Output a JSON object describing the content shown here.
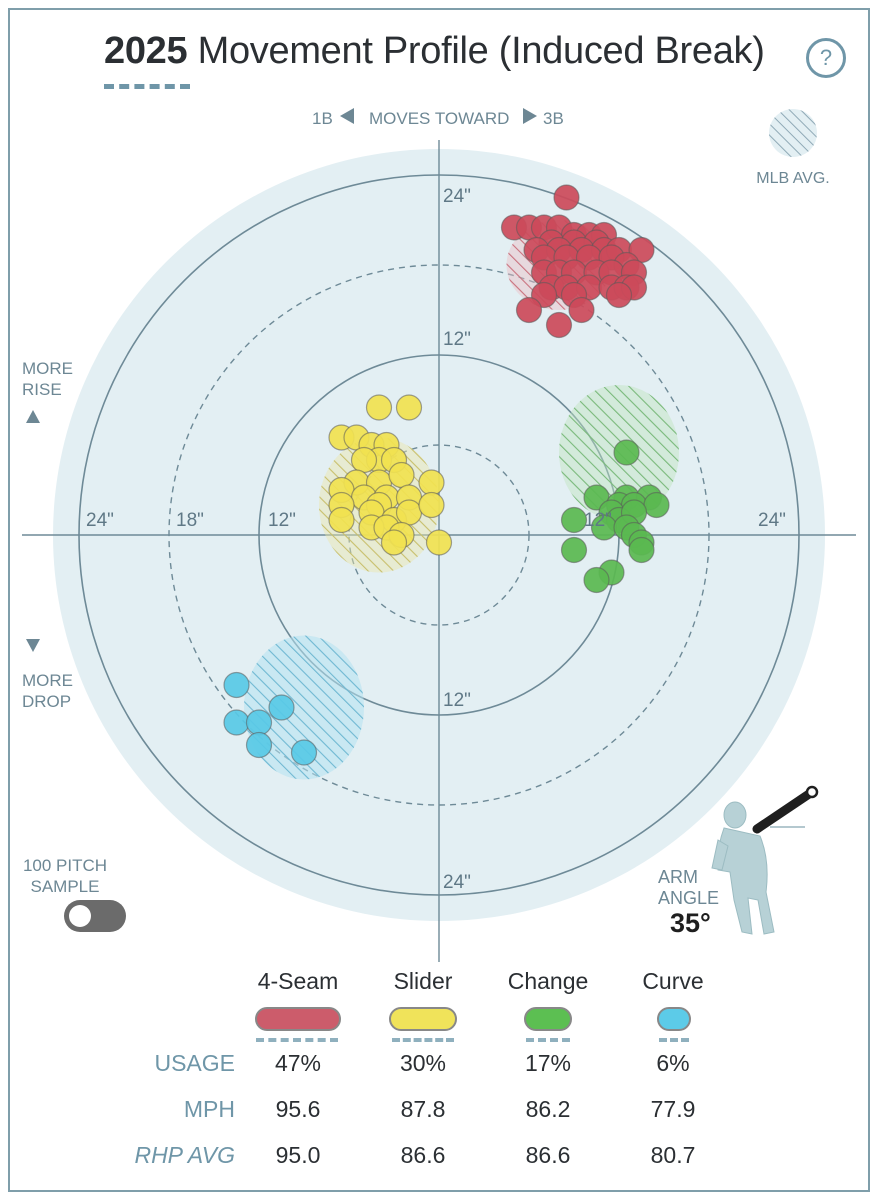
{
  "header": {
    "title_year": "2025",
    "title_rest": " Movement Profile (Induced Break)",
    "help_label": "?"
  },
  "axis_labels": {
    "top_left": "1B",
    "top_middle": "MOVES TOWARD",
    "top_right": "3B",
    "rise_line1": "MORE",
    "rise_line2": "RISE",
    "drop_line1": "MORE",
    "drop_line2": "DROP",
    "mlb_avg": "MLB AVG.",
    "sample_line1": "100 PITCH",
    "sample_line2": "SAMPLE",
    "arm_angle_line1": "ARM",
    "arm_angle_line2": "ANGLE",
    "arm_angle_value": "35°"
  },
  "chart_data": {
    "type": "scatter",
    "title": "2025 Movement Profile (Induced Break)",
    "xlabel": "MOVES TOWARD",
    "x_range": [
      -24,
      24
    ],
    "y_range": [
      -24,
      24
    ],
    "tick_labels": {
      "ring_12": "12\"",
      "ring_18": "18\"",
      "ring_24": "24\""
    },
    "mlb_avg_ellipses": [
      {
        "pitch": "4-Seam",
        "x": 8,
        "y": 18,
        "rx": 3.5,
        "ry": 3
      },
      {
        "pitch": "Slider",
        "x": -4,
        "y": 2,
        "rx": 4,
        "ry": 4.5
      },
      {
        "pitch": "Change",
        "x": 12,
        "y": 5.5,
        "rx": 4,
        "ry": 4.5
      },
      {
        "pitch": "Curve",
        "x": -9,
        "y": -11.5,
        "rx": 4,
        "ry": 4.8
      }
    ],
    "series": [
      {
        "name": "4-Seam",
        "color": "#cc4a5a",
        "points": [
          [
            8.5,
            22.5
          ],
          [
            5,
            20.5
          ],
          [
            6,
            20.5
          ],
          [
            7,
            20.5
          ],
          [
            8,
            20.5
          ],
          [
            9,
            20
          ],
          [
            10,
            20
          ],
          [
            11,
            20
          ],
          [
            7.5,
            19.5
          ],
          [
            9,
            19.5
          ],
          [
            10.5,
            19.5
          ],
          [
            6.5,
            19
          ],
          [
            8,
            19
          ],
          [
            9.5,
            19
          ],
          [
            11,
            19
          ],
          [
            12,
            19
          ],
          [
            13.5,
            19
          ],
          [
            7,
            18.5
          ],
          [
            8.5,
            18.5
          ],
          [
            10,
            18.5
          ],
          [
            11.5,
            18.5
          ],
          [
            12.5,
            18
          ],
          [
            7,
            17.5
          ],
          [
            8,
            17.5
          ],
          [
            9,
            17.5
          ],
          [
            10.5,
            17.5
          ],
          [
            11.5,
            17.5
          ],
          [
            13,
            17.5
          ],
          [
            7.5,
            16.5
          ],
          [
            8.5,
            16.5
          ],
          [
            10,
            16.5
          ],
          [
            11.5,
            16.5
          ],
          [
            12.5,
            16.5
          ],
          [
            13,
            16.5
          ],
          [
            7,
            16
          ],
          [
            9,
            16
          ],
          [
            12,
            16
          ],
          [
            6,
            15
          ],
          [
            9.5,
            15
          ],
          [
            8,
            14
          ]
        ]
      },
      {
        "name": "Slider",
        "color": "#f1e250",
        "points": [
          [
            -4,
            8.5
          ],
          [
            -2,
            8.5
          ],
          [
            -6.5,
            6.5
          ],
          [
            -5.5,
            6.5
          ],
          [
            -4.5,
            6
          ],
          [
            -3.5,
            6
          ],
          [
            -4,
            5
          ],
          [
            -5,
            5
          ],
          [
            -3,
            5
          ],
          [
            -5.5,
            3.5
          ],
          [
            -4,
            3.5
          ],
          [
            -2.5,
            4
          ],
          [
            -6.5,
            3
          ],
          [
            -5,
            2.5
          ],
          [
            -3.5,
            2.5
          ],
          [
            -2,
            2.5
          ],
          [
            -0.5,
            3.5
          ],
          [
            -4,
            2
          ],
          [
            -6.5,
            2
          ],
          [
            -4.5,
            1.5
          ],
          [
            -3,
            1
          ],
          [
            -2,
            1.5
          ],
          [
            -0.5,
            2
          ],
          [
            -6.5,
            1
          ],
          [
            -4.5,
            0.5
          ],
          [
            -3.5,
            0.5
          ],
          [
            -2.5,
            0
          ],
          [
            -3,
            -0.5
          ],
          [
            0,
            -0.5
          ]
        ]
      },
      {
        "name": "Change",
        "color": "#5ab950",
        "points": [
          [
            12.5,
            5.5
          ],
          [
            10.5,
            2.5
          ],
          [
            12.5,
            2.5
          ],
          [
            14,
            2.5
          ],
          [
            12,
            2
          ],
          [
            13,
            2
          ],
          [
            14.5,
            2
          ],
          [
            11.5,
            1.5
          ],
          [
            12,
            1
          ],
          [
            13,
            1.5
          ],
          [
            9,
            1
          ],
          [
            11,
            0.5
          ],
          [
            12.5,
            0.5
          ],
          [
            13,
            0
          ],
          [
            13.5,
            -0.5
          ],
          [
            13.5,
            -1
          ],
          [
            9,
            -1
          ],
          [
            11.5,
            -2.5
          ],
          [
            10.5,
            -3
          ]
        ]
      },
      {
        "name": "Curve",
        "color": "#58c9e6",
        "points": [
          [
            -13.5,
            -10
          ],
          [
            -10.5,
            -11.5
          ],
          [
            -13.5,
            -12.5
          ],
          [
            -12,
            -12.5
          ],
          [
            -12,
            -14
          ],
          [
            -9,
            -14.5
          ]
        ]
      }
    ]
  },
  "legend": {
    "pitches": [
      {
        "name": "4-Seam",
        "color": "#cc5c6b"
      },
      {
        "name": "Slider",
        "color": "#f0e35a"
      },
      {
        "name": "Change",
        "color": "#5cbf52"
      },
      {
        "name": "Curve",
        "color": "#5ccbe8"
      }
    ]
  },
  "table": {
    "rows": [
      {
        "label": "USAGE",
        "values": [
          "47%",
          "30%",
          "17%",
          "6%"
        ]
      },
      {
        "label": "MPH",
        "values": [
          "95.6",
          "87.8",
          "86.2",
          "77.9"
        ]
      },
      {
        "label": "RHP AVG",
        "values": [
          "95.0",
          "86.6",
          "86.6",
          "80.7"
        ]
      }
    ]
  }
}
